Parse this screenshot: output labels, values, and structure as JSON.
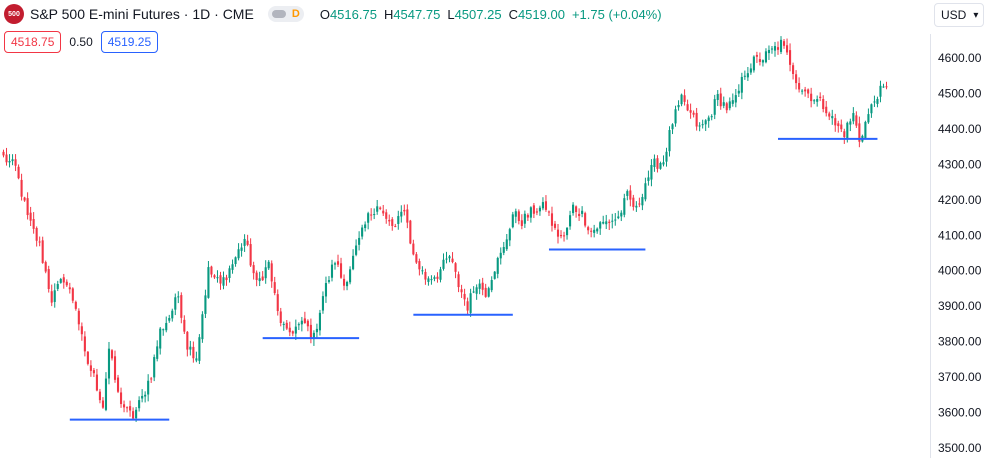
{
  "header": {
    "symbol_badge": "500",
    "title": "S&P 500 E-mini Futures · 1D · CME",
    "toggle_label": "D",
    "ohlc": [
      {
        "key": "O",
        "value": "4516.75"
      },
      {
        "key": "H",
        "value": "4547.75"
      },
      {
        "key": "L",
        "value": "4507.25"
      },
      {
        "key": "C",
        "value": "4519.00"
      }
    ],
    "change": "+1.75 (+0.04%)",
    "sell_price": "4518.75",
    "spread": "0.50",
    "buy_price": "4519.25",
    "currency": "USD"
  },
  "colors": {
    "up": "#089981",
    "down": "#f23645",
    "level_line": "#2962ff",
    "axis_text": "#131722"
  },
  "chart_data": {
    "type": "candlestick",
    "title": "S&P 500 E-mini Futures · 1D · CME",
    "ylim": [
      3470,
      4665
    ],
    "yticks": [
      3500,
      3600,
      3700,
      3800,
      3900,
      4000,
      4100,
      4200,
      4300,
      4400,
      4500,
      4600
    ],
    "ytick_labels": [
      "3500.00",
      "3600.00",
      "3700.00",
      "3800.00",
      "3900.00",
      "4000.00",
      "4100.00",
      "4200.00",
      "4300.00",
      "4400.00",
      "4500.00",
      "4600.00"
    ],
    "grid": false,
    "bar_count": 294,
    "last_close": 4519.0,
    "support_levels": [
      {
        "from_bar": 22,
        "to_bar": 55,
        "price": 3580
      },
      {
        "from_bar": 86,
        "to_bar": 118,
        "price": 3810
      },
      {
        "from_bar": 136,
        "to_bar": 169,
        "price": 3876
      },
      {
        "from_bar": 181,
        "to_bar": 213,
        "price": 4060
      },
      {
        "from_bar": 257,
        "to_bar": 290,
        "price": 4372
      }
    ],
    "anchors": [
      [
        0,
        4320
      ],
      [
        4,
        4290
      ],
      [
        8,
        4150
      ],
      [
        12,
        4070
      ],
      [
        16,
        3920
      ],
      [
        20,
        3980
      ],
      [
        24,
        3900
      ],
      [
        27,
        3760
      ],
      [
        30,
        3700
      ],
      [
        33,
        3620
      ],
      [
        35,
        3780
      ],
      [
        38,
        3650
      ],
      [
        41,
        3600
      ],
      [
        43,
        3590
      ],
      [
        46,
        3640
      ],
      [
        49,
        3710
      ],
      [
        52,
        3830
      ],
      [
        55,
        3870
      ],
      [
        58,
        3930
      ],
      [
        61,
        3790
      ],
      [
        64,
        3760
      ],
      [
        68,
        4000
      ],
      [
        72,
        3960
      ],
      [
        76,
        4020
      ],
      [
        80,
        4090
      ],
      [
        84,
        3960
      ],
      [
        88,
        4020
      ],
      [
        91,
        3880
      ],
      [
        94,
        3820
      ],
      [
        97,
        3840
      ],
      [
        100,
        3850
      ],
      [
        103,
        3810
      ],
      [
        106,
        3930
      ],
      [
        110,
        4030
      ],
      [
        113,
        3960
      ],
      [
        117,
        4060
      ],
      [
        121,
        4150
      ],
      [
        124,
        4190
      ],
      [
        127,
        4140
      ],
      [
        130,
        4120
      ],
      [
        133,
        4180
      ],
      [
        136,
        4040
      ],
      [
        140,
        3980
      ],
      [
        144,
        3990
      ],
      [
        148,
        4040
      ],
      [
        151,
        3960
      ],
      [
        154,
        3900
      ],
      [
        157,
        3970
      ],
      [
        160,
        3940
      ],
      [
        163,
        4010
      ],
      [
        166,
        4060
      ],
      [
        169,
        4160
      ],
      [
        172,
        4140
      ],
      [
        176,
        4170
      ],
      [
        180,
        4180
      ],
      [
        183,
        4110
      ],
      [
        186,
        4090
      ],
      [
        189,
        4180
      ],
      [
        192,
        4160
      ],
      [
        195,
        4110
      ],
      [
        198,
        4130
      ],
      [
        201,
        4140
      ],
      [
        204,
        4150
      ],
      [
        207,
        4210
      ],
      [
        210,
        4170
      ],
      [
        213,
        4250
      ],
      [
        216,
        4300
      ],
      [
        219,
        4310
      ],
      [
        222,
        4420
      ],
      [
        225,
        4480
      ],
      [
        228,
        4440
      ],
      [
        231,
        4400
      ],
      [
        234,
        4430
      ],
      [
        237,
        4490
      ],
      [
        240,
        4460
      ],
      [
        243,
        4480
      ],
      [
        246,
        4560
      ],
      [
        249,
        4590
      ],
      [
        252,
        4600
      ],
      [
        255,
        4620
      ],
      [
        258,
        4640
      ],
      [
        261,
        4590
      ],
      [
        264,
        4520
      ],
      [
        267,
        4500
      ],
      [
        270,
        4480
      ],
      [
        273,
        4460
      ],
      [
        276,
        4410
      ],
      [
        279,
        4390
      ],
      [
        282,
        4440
      ],
      [
        284,
        4370
      ],
      [
        287,
        4440
      ],
      [
        290,
        4500
      ],
      [
        294,
        4519
      ]
    ]
  }
}
